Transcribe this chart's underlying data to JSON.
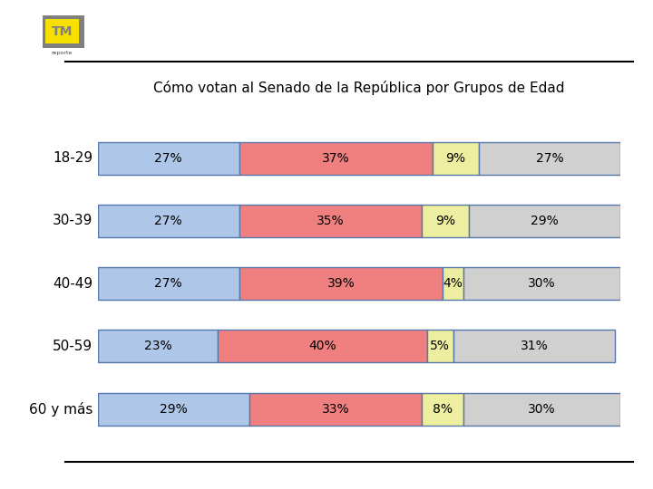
{
  "title": "Cómo votan al Senado de la República por Grupos de Edad",
  "categories": [
    "18-29",
    "30-39",
    "40-49",
    "50-59",
    "60 y más"
  ],
  "values": [
    [
      27,
      37,
      9,
      27
    ],
    [
      27,
      35,
      9,
      29
    ],
    [
      27,
      39,
      4,
      30
    ],
    [
      23,
      40,
      5,
      31
    ],
    [
      29,
      33,
      8,
      30
    ]
  ],
  "colors": [
    "#aec6e8",
    "#f08080",
    "#eeeea0",
    "#d0d0d0"
  ],
  "bar_edge_color": "#5577aa",
  "background_color": "#ffffff",
  "title_fontsize": 11,
  "label_fontsize": 11,
  "bar_height": 0.52,
  "text_fontsize": 10,
  "logo_bg": "#808080",
  "logo_yellow": "#f5d800",
  "logo_text": "#f5d800",
  "line_color": "#000000"
}
